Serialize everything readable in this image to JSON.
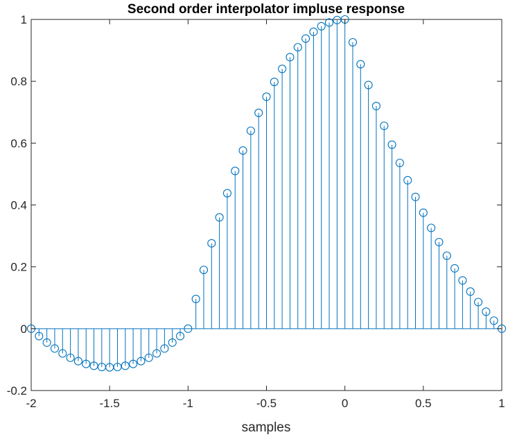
{
  "chart_data": {
    "type": "stem",
    "title": "Second order interpolator impluse response",
    "xlabel": "samples",
    "ylabel": "",
    "xlim": [
      -2,
      1
    ],
    "ylim": [
      -0.2,
      1
    ],
    "xticks": [
      "-2",
      "-1.5",
      "-1",
      "-0.5",
      "0",
      "0.5",
      "1"
    ],
    "yticks": [
      "-0.2",
      "0",
      "0.2",
      "0.4",
      "0.6",
      "0.8",
      "1"
    ],
    "grid": false,
    "color": "#0072BD",
    "x": [
      -2.0,
      -1.95,
      -1.9,
      -1.85,
      -1.8,
      -1.75,
      -1.7,
      -1.65,
      -1.6,
      -1.55,
      -1.5,
      -1.45,
      -1.4,
      -1.35,
      -1.3,
      -1.25,
      -1.2,
      -1.15,
      -1.1,
      -1.05,
      -1.0,
      -0.95,
      -0.9,
      -0.85,
      -0.8,
      -0.75,
      -0.7,
      -0.65,
      -0.6,
      -0.55,
      -0.5,
      -0.45,
      -0.4,
      -0.35,
      -0.3,
      -0.25,
      -0.2,
      -0.15,
      -0.1,
      -0.05,
      0.0,
      0.05,
      0.1,
      0.15,
      0.2,
      0.25,
      0.3,
      0.35,
      0.4,
      0.45,
      0.5,
      0.55,
      0.6,
      0.65,
      0.7,
      0.75,
      0.8,
      0.85,
      0.9,
      0.95,
      1.0
    ],
    "y": [
      0,
      -0.024,
      -0.045,
      -0.064,
      -0.08,
      -0.094,
      -0.105,
      -0.114,
      -0.12,
      -0.124,
      -0.125,
      -0.124,
      -0.12,
      -0.114,
      -0.105,
      -0.094,
      -0.08,
      -0.064,
      -0.045,
      -0.024,
      0,
      0.096,
      0.19,
      0.276,
      0.36,
      0.438,
      0.51,
      0.576,
      0.64,
      0.698,
      0.75,
      0.798,
      0.84,
      0.878,
      0.91,
      0.938,
      0.96,
      0.978,
      0.99,
      0.998,
      1.0,
      0.926,
      0.855,
      0.788,
      0.72,
      0.656,
      0.595,
      0.536,
      0.48,
      0.426,
      0.375,
      0.326,
      0.28,
      0.236,
      0.195,
      0.156,
      0.12,
      0.086,
      0.055,
      0.026,
      0
    ]
  }
}
